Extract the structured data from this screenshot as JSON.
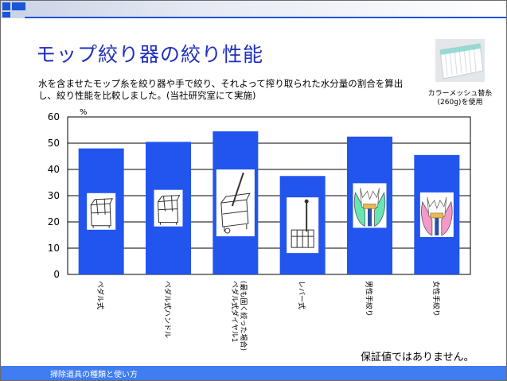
{
  "slide": {
    "title": "モップ絞り器の絞り性能",
    "description_line1": "水を含ませたモップ糸を絞り器や手で絞り、それよって搾り取られた水分量の割合を算出",
    "description_line2": "し、絞り性能を比較しました。(当社研究室にて実施)",
    "sample_caption_line1": "カラーメッシュ替糸",
    "sample_caption_line2": "(260g)を使用",
    "note": "保証値ではありません。",
    "footer": "掃除道具の種類と使い方"
  },
  "colors": {
    "accent": "#1b55d8",
    "bar": "#2255ee",
    "title": "#1f2fbf",
    "footer": "#3f7df0"
  },
  "chart_data": {
    "type": "bar",
    "title": "",
    "ylabel": "%",
    "xlabel": "",
    "ylim": [
      0,
      60
    ],
    "yticks": [
      0,
      10,
      20,
      30,
      40,
      50,
      60
    ],
    "grid": true,
    "legend": "none",
    "categories": [
      {
        "label": "ペダル式",
        "sublabel": "",
        "icon": "bucket-wringer-icon"
      },
      {
        "label": "ペダル式ハンドル",
        "sublabel": "",
        "icon": "bucket-wringer-icon"
      },
      {
        "label": "ペダル式ダイヤル1",
        "sublabel": "(最も固く絞った場合)",
        "icon": "dial-wringer-icon"
      },
      {
        "label": "レバー式",
        "sublabel": "",
        "icon": "lever-wringer-icon"
      },
      {
        "label": "男性手絞り",
        "sublabel": "",
        "icon": "male-hand-wring-icon"
      },
      {
        "label": "女性手絞り",
        "sublabel": "",
        "icon": "female-hand-wring-icon"
      }
    ],
    "values": [
      48,
      50.5,
      54.5,
      37.5,
      52.5,
      45.5
    ]
  }
}
